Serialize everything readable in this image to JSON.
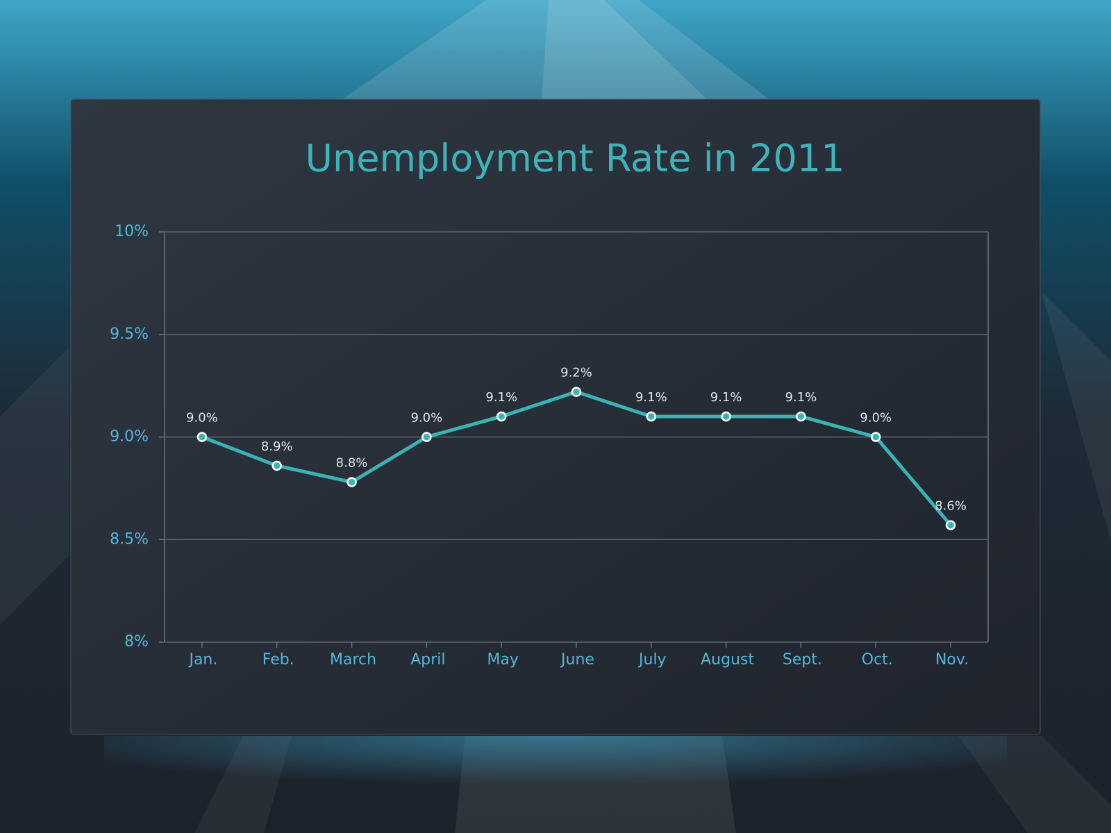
{
  "chart_data": {
    "type": "line",
    "title": "Unemployment Rate in 2011",
    "categories": [
      "Jan.",
      "Feb.",
      "March",
      "April",
      "May",
      "June",
      "July",
      "August",
      "Sept.",
      "Oct.",
      "Nov."
    ],
    "values": [
      9.0,
      8.86,
      8.78,
      9.0,
      9.1,
      9.22,
      9.1,
      9.1,
      9.1,
      9.0,
      8.57
    ],
    "value_labels": [
      "9.0%",
      "8.9%",
      "8.8%",
      "9.0%",
      "9.1%",
      "9.2%",
      "9.1%",
      "9.1%",
      "9.1%",
      "9.0%",
      "8.6%"
    ],
    "color": "#3ab3b3",
    "ylim": [
      8,
      10
    ],
    "yticks": [
      {
        "value": 8,
        "label": "8%"
      },
      {
        "value": 8.5,
        "label": "8.5%"
      },
      {
        "value": 9,
        "label": "9.0%"
      },
      {
        "value": 9.5,
        "label": "9.5%"
      },
      {
        "value": 10,
        "label": "10%"
      }
    ],
    "grid": true
  }
}
